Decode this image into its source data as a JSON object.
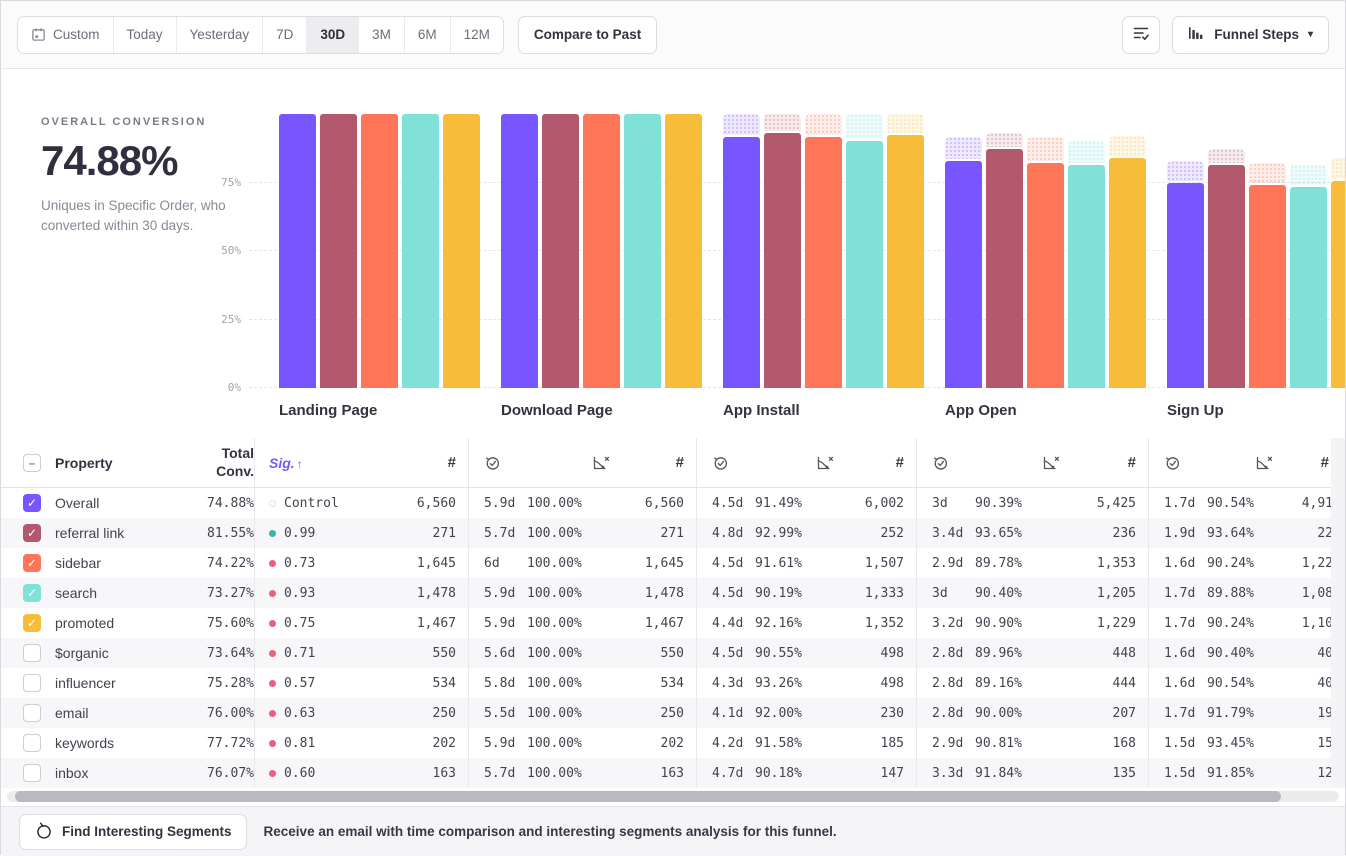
{
  "toolbar": {
    "date_ranges": [
      "Custom",
      "Today",
      "Yesterday",
      "7D",
      "30D",
      "3M",
      "6M",
      "12M"
    ],
    "active_range": "30D",
    "compare_label": "Compare to Past",
    "view_label": "Funnel Steps",
    "view_caret": "▾"
  },
  "summary": {
    "label": "OVERALL CONVERSION",
    "value": "74.88%",
    "description": "Uniques in Specific Order, who converted within 30 days."
  },
  "chart_data": {
    "type": "bar",
    "categories": [
      "Landing Page",
      "Download Page",
      "App Install",
      "App Open",
      "Sign Up"
    ],
    "yticks": [
      "0%",
      "25%",
      "50%",
      "75%"
    ],
    "ylim": [
      0,
      100
    ],
    "grid": "dashed horizontal",
    "legend_position": "table-row-checkboxes",
    "note": "values are cumulative conversion % per funnel step; light dotted cap above each bar shows drop-off from previous step",
    "series": [
      {
        "name": "Overall",
        "color": "#7856FF",
        "values": [
          100,
          100,
          91.49,
          82.7,
          74.88
        ]
      },
      {
        "name": "referral link",
        "color": "#B2596E",
        "values": [
          100,
          100,
          92.99,
          87.08,
          81.55
        ]
      },
      {
        "name": "sidebar",
        "color": "#FF7557",
        "values": [
          100,
          100,
          91.61,
          82.25,
          74.22
        ]
      },
      {
        "name": "search",
        "color": "#80E1D9",
        "values": [
          100,
          100,
          90.19,
          81.53,
          73.27
        ]
      },
      {
        "name": "promoted",
        "color": "#F8BC3B",
        "values": [
          100,
          100,
          92.16,
          83.78,
          75.6
        ]
      }
    ]
  },
  "table": {
    "property_header": "Property",
    "total_header_line1": "Total",
    "total_header_line2": "Conv.",
    "sig_header": "Sig.",
    "sort_arrow": "↑",
    "count_symbol": "#",
    "sig_colors": {
      "significant": "#41b0ab",
      "not_significant": "#ed5f7e",
      "control": "#e4e4e9"
    },
    "rows": [
      {
        "name": "Overall",
        "checked": true,
        "color": "#7856FF",
        "total": "74.88%",
        "sig": "Control",
        "sig_state": "control",
        "landing_count": "6,560",
        "steps": [
          [
            "5.9d",
            "100.00%",
            "6,560"
          ],
          [
            "4.5d",
            "91.49%",
            "6,002"
          ],
          [
            "3d",
            "90.39%",
            "5,425"
          ],
          [
            "1.7d",
            "90.54%",
            "4,91"
          ]
        ]
      },
      {
        "name": "referral link",
        "checked": true,
        "color": "#B2596E",
        "total": "81.55%",
        "sig": "0.99",
        "sig_state": "high",
        "landing_count": "271",
        "steps": [
          [
            "5.7d",
            "100.00%",
            "271"
          ],
          [
            "4.8d",
            "92.99%",
            "252"
          ],
          [
            "3.4d",
            "93.65%",
            "236"
          ],
          [
            "1.9d",
            "93.64%",
            "22"
          ]
        ]
      },
      {
        "name": "sidebar",
        "checked": true,
        "color": "#FF7557",
        "total": "74.22%",
        "sig": "0.73",
        "sig_state": "low",
        "landing_count": "1,645",
        "steps": [
          [
            "6d",
            "100.00%",
            "1,645"
          ],
          [
            "4.5d",
            "91.61%",
            "1,507"
          ],
          [
            "2.9d",
            "89.78%",
            "1,353"
          ],
          [
            "1.6d",
            "90.24%",
            "1,22"
          ]
        ]
      },
      {
        "name": "search",
        "checked": true,
        "color": "#80E1D9",
        "total": "73.27%",
        "sig": "0.93",
        "sig_state": "low",
        "landing_count": "1,478",
        "steps": [
          [
            "5.9d",
            "100.00%",
            "1,478"
          ],
          [
            "4.5d",
            "90.19%",
            "1,333"
          ],
          [
            "3d",
            "90.40%",
            "1,205"
          ],
          [
            "1.7d",
            "89.88%",
            "1,08"
          ]
        ]
      },
      {
        "name": "promoted",
        "checked": true,
        "color": "#F8BC3B",
        "total": "75.60%",
        "sig": "0.75",
        "sig_state": "low",
        "landing_count": "1,467",
        "steps": [
          [
            "5.9d",
            "100.00%",
            "1,467"
          ],
          [
            "4.4d",
            "92.16%",
            "1,352"
          ],
          [
            "3.2d",
            "90.90%",
            "1,229"
          ],
          [
            "1.7d",
            "90.24%",
            "1,10"
          ]
        ]
      },
      {
        "name": "$organic",
        "checked": false,
        "color": "#7856FF",
        "total": "73.64%",
        "sig": "0.71",
        "sig_state": "low",
        "landing_count": "550",
        "steps": [
          [
            "5.6d",
            "100.00%",
            "550"
          ],
          [
            "4.5d",
            "90.55%",
            "498"
          ],
          [
            "2.8d",
            "89.96%",
            "448"
          ],
          [
            "1.6d",
            "90.40%",
            "40"
          ]
        ]
      },
      {
        "name": "influencer",
        "checked": false,
        "color": "#7856FF",
        "total": "75.28%",
        "sig": "0.57",
        "sig_state": "low",
        "landing_count": "534",
        "steps": [
          [
            "5.8d",
            "100.00%",
            "534"
          ],
          [
            "4.3d",
            "93.26%",
            "498"
          ],
          [
            "2.8d",
            "89.16%",
            "444"
          ],
          [
            "1.6d",
            "90.54%",
            "40"
          ]
        ]
      },
      {
        "name": "email",
        "checked": false,
        "color": "#7856FF",
        "total": "76.00%",
        "sig": "0.63",
        "sig_state": "low",
        "landing_count": "250",
        "steps": [
          [
            "5.5d",
            "100.00%",
            "250"
          ],
          [
            "4.1d",
            "92.00%",
            "230"
          ],
          [
            "2.8d",
            "90.00%",
            "207"
          ],
          [
            "1.7d",
            "91.79%",
            "19"
          ]
        ]
      },
      {
        "name": "keywords",
        "checked": false,
        "color": "#7856FF",
        "total": "77.72%",
        "sig": "0.81",
        "sig_state": "low",
        "landing_count": "202",
        "steps": [
          [
            "5.9d",
            "100.00%",
            "202"
          ],
          [
            "4.2d",
            "91.58%",
            "185"
          ],
          [
            "2.9d",
            "90.81%",
            "168"
          ],
          [
            "1.5d",
            "93.45%",
            "15"
          ]
        ]
      },
      {
        "name": "inbox",
        "checked": false,
        "color": "#7856FF",
        "total": "76.07%",
        "sig": "0.60",
        "sig_state": "low",
        "landing_count": "163",
        "steps": [
          [
            "5.7d",
            "100.00%",
            "163"
          ],
          [
            "4.7d",
            "90.18%",
            "147"
          ],
          [
            "3.3d",
            "91.84%",
            "135"
          ],
          [
            "1.5d",
            "91.85%",
            "12"
          ]
        ]
      }
    ]
  },
  "footer": {
    "find_button": "Find Interesting Segments",
    "message": "Receive an email with time comparison and interesting segments analysis for this funnel."
  }
}
